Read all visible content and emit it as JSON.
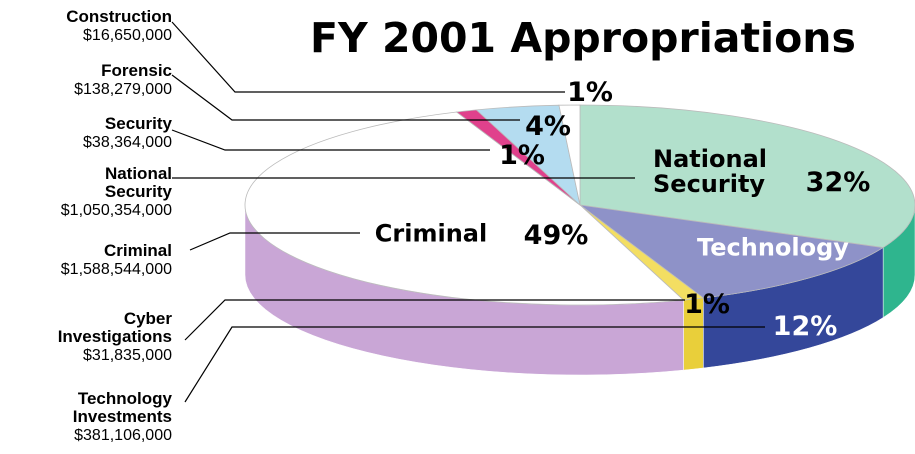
{
  "chart_data": {
    "type": "pie",
    "title": "FY 2001 Appropriations",
    "categories": [
      "National Security",
      "Technology Investments",
      "Cyber Investigations",
      "Criminal",
      "Security",
      "Forensic",
      "Construction"
    ],
    "values": [
      32,
      12,
      1,
      49,
      1,
      4,
      1
    ],
    "value_labels": [
      "32%",
      "12%",
      "1%",
      "49%",
      "1%",
      "4%",
      "1%"
    ],
    "amounts": [
      1050354000,
      381106000,
      31835000,
      1588544000,
      38364000,
      138279000,
      16650000
    ],
    "amount_labels": [
      "$1,050,354,000",
      "$381,106,000",
      "$31,835,000",
      "$1,588,544,000",
      "$38,364,000",
      "$138,279,000",
      "$16,650,000"
    ],
    "slice_labels": [
      "National Security",
      "Technology",
      null,
      "Criminal",
      null,
      null,
      null
    ],
    "colors": [
      "#b2e0cc",
      "#8e92c8",
      "#f3de62",
      "#ffffff",
      "#e0418c",
      "#b4dcf0",
      "#ffffff"
    ],
    "side_colors": [
      "#2fb58e",
      "#34479a",
      "#e9cf3a",
      "#c9a6d6",
      "#b0306c",
      "#7fb8d8",
      "#dddddd"
    ]
  }
}
